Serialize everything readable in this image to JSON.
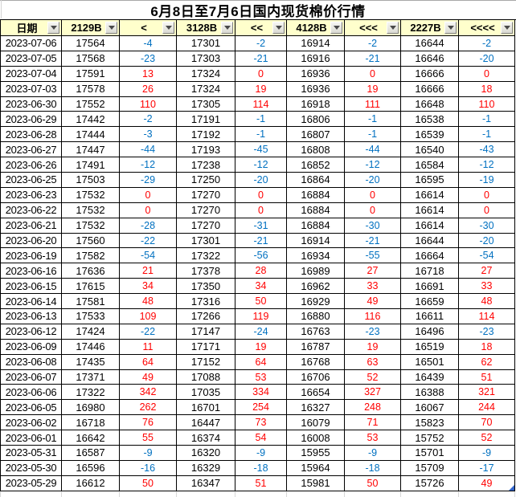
{
  "title": "6月8日至7月6日国内现货棉价行情",
  "colors": {
    "header_background": "#FFFFCC",
    "positive_change": "#FF0000",
    "negative_change": "#0070C0",
    "grid_border": "#000000"
  },
  "icons": {
    "filter_dropdown": "chevron-down-icon"
  },
  "table": {
    "columns": [
      {
        "label": "日期"
      },
      {
        "label": "2129B"
      },
      {
        "label": "<"
      },
      {
        "label": "3128B"
      },
      {
        "label": "<<"
      },
      {
        "label": "4128B"
      },
      {
        "label": "<<<"
      },
      {
        "label": "2227B"
      },
      {
        "label": "<<<<"
      }
    ],
    "rows": [
      [
        "2023-07-06",
        "17564",
        "-4",
        "17301",
        "-2",
        "16914",
        "-2",
        "16644",
        "-2"
      ],
      [
        "2023-07-05",
        "17568",
        "-23",
        "17303",
        "-21",
        "16916",
        "-21",
        "16646",
        "-20"
      ],
      [
        "2023-07-04",
        "17591",
        "13",
        "17324",
        "0",
        "16936",
        "0",
        "16666",
        "0"
      ],
      [
        "2023-07-03",
        "17578",
        "26",
        "17324",
        "19",
        "16936",
        "19",
        "16666",
        "18"
      ],
      [
        "2023-06-30",
        "17552",
        "110",
        "17305",
        "114",
        "16918",
        "111",
        "16648",
        "110"
      ],
      [
        "2023-06-29",
        "17442",
        "-2",
        "17191",
        "-1",
        "16806",
        "-1",
        "16538",
        "-1"
      ],
      [
        "2023-06-28",
        "17444",
        "-3",
        "17192",
        "-1",
        "16807",
        "-1",
        "16539",
        "-1"
      ],
      [
        "2023-06-27",
        "17447",
        "-44",
        "17193",
        "-45",
        "16808",
        "-44",
        "16540",
        "-43"
      ],
      [
        "2023-06-26",
        "17491",
        "-12",
        "17238",
        "-12",
        "16852",
        "-12",
        "16584",
        "-12"
      ],
      [
        "2023-06-25",
        "17503",
        "-29",
        "17250",
        "-20",
        "16864",
        "-20",
        "16595",
        "-19"
      ],
      [
        "2023-06-23",
        "17532",
        "0",
        "17270",
        "0",
        "16884",
        "0",
        "16614",
        "0"
      ],
      [
        "2023-06-22",
        "17532",
        "0",
        "17270",
        "0",
        "16884",
        "0",
        "16614",
        "0"
      ],
      [
        "2023-06-21",
        "17532",
        "-28",
        "17270",
        "-31",
        "16884",
        "-30",
        "16614",
        "-30"
      ],
      [
        "2023-06-20",
        "17560",
        "-22",
        "17301",
        "-21",
        "16914",
        "-21",
        "16644",
        "-20"
      ],
      [
        "2023-06-19",
        "17582",
        "-54",
        "17322",
        "-56",
        "16934",
        "-55",
        "16664",
        "-54"
      ],
      [
        "2023-06-16",
        "17636",
        "21",
        "17378",
        "28",
        "16989",
        "27",
        "16718",
        "27"
      ],
      [
        "2023-06-15",
        "17615",
        "34",
        "17350",
        "34",
        "16962",
        "33",
        "16691",
        "33"
      ],
      [
        "2023-06-14",
        "17581",
        "48",
        "17316",
        "50",
        "16929",
        "49",
        "16659",
        "48"
      ],
      [
        "2023-06-13",
        "17533",
        "109",
        "17266",
        "119",
        "16880",
        "116",
        "16611",
        "114"
      ],
      [
        "2023-06-12",
        "17424",
        "-22",
        "17147",
        "-24",
        "16763",
        "-23",
        "16496",
        "-23"
      ],
      [
        "2023-06-09",
        "17446",
        "11",
        "17171",
        "19",
        "16787",
        "19",
        "16519",
        "18"
      ],
      [
        "2023-06-08",
        "17435",
        "64",
        "17152",
        "64",
        "16768",
        "63",
        "16501",
        "62"
      ],
      [
        "2023-06-07",
        "17371",
        "49",
        "17088",
        "53",
        "16706",
        "52",
        "16439",
        "51"
      ],
      [
        "2023-06-06",
        "17322",
        "342",
        "17035",
        "334",
        "16654",
        "327",
        "16388",
        "321"
      ],
      [
        "2023-06-05",
        "16980",
        "262",
        "16701",
        "254",
        "16327",
        "248",
        "16067",
        "244"
      ],
      [
        "2023-06-02",
        "16718",
        "76",
        "16447",
        "73",
        "16079",
        "71",
        "15823",
        "70"
      ],
      [
        "2023-06-01",
        "16642",
        "55",
        "16374",
        "54",
        "16008",
        "53",
        "15752",
        "52"
      ],
      [
        "2023-05-31",
        "16587",
        "-9",
        "16320",
        "-9",
        "15955",
        "-9",
        "15701",
        "-9"
      ],
      [
        "2023-05-30",
        "16596",
        "-16",
        "16329",
        "-18",
        "15964",
        "-18",
        "15709",
        "-17"
      ],
      [
        "2023-05-29",
        "16612",
        "50",
        "16347",
        "51",
        "15981",
        "50",
        "15726",
        "49"
      ]
    ]
  }
}
